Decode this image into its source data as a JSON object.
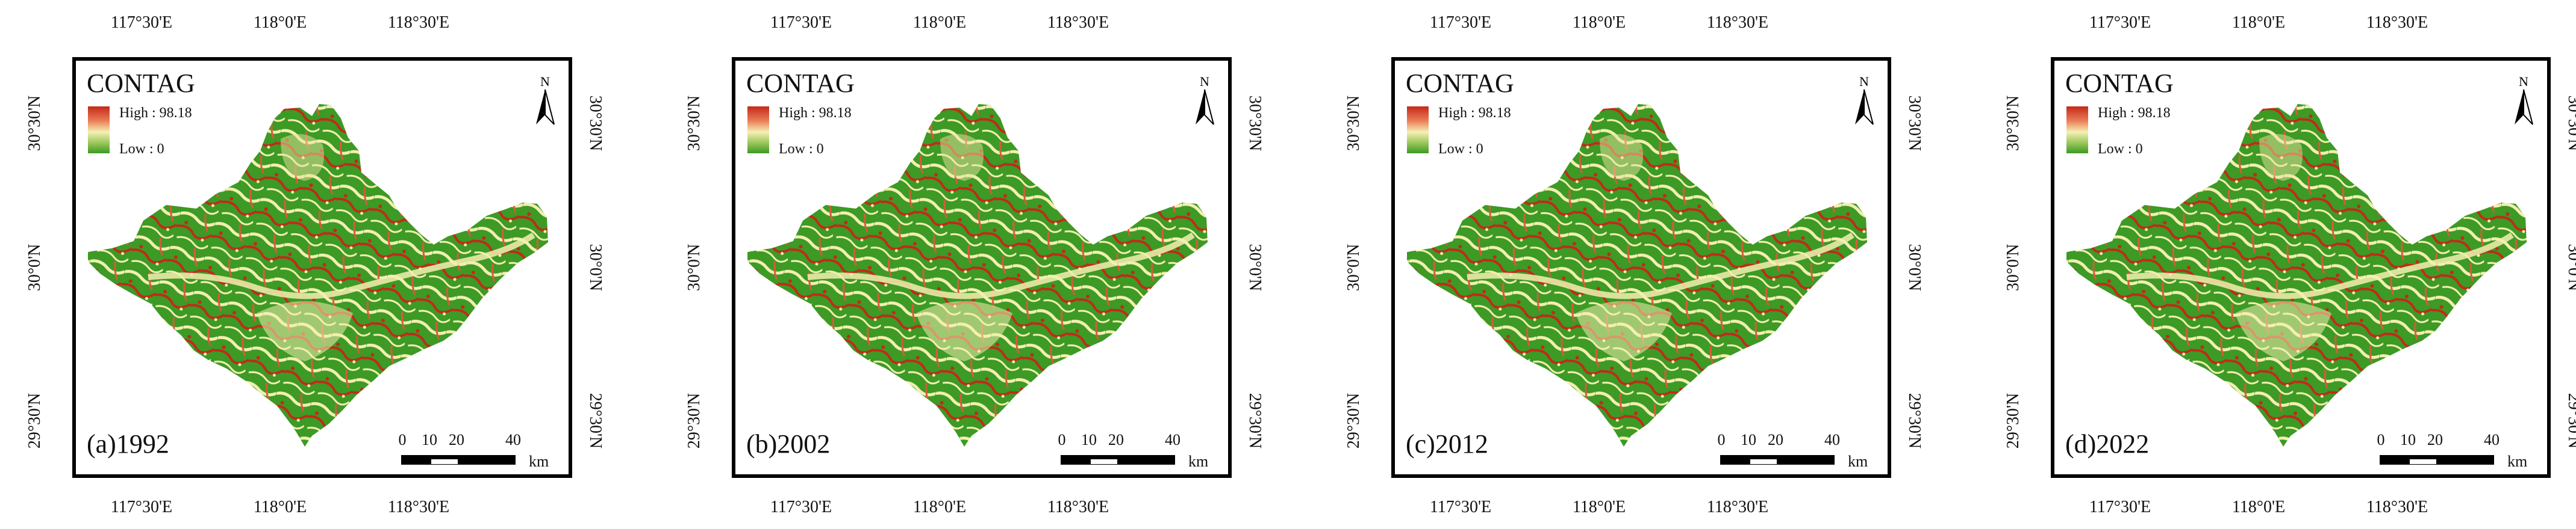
{
  "legend": {
    "title": "CONTAG",
    "high_label": "High : 98.18",
    "low_label": "Low : 0",
    "ramp_colors": [
      "#c62818",
      "#e97b55",
      "#f5f0b4",
      "#9ac65b",
      "#3c9a25"
    ]
  },
  "graticule": {
    "longitude_labels": [
      "117°30'E",
      "118°0'E",
      "118°30'E"
    ],
    "latitude_labels": [
      "30°30'N",
      "30°0'N",
      "29°30'N"
    ]
  },
  "north_arrow": {
    "label": "N",
    "icon": "north-arrow-icon"
  },
  "scale_bar": {
    "ticks": [
      "0",
      "10",
      "20",
      "40"
    ],
    "unit": "km"
  },
  "panels": [
    {
      "label": "(a)1992"
    },
    {
      "label": "(b)2002"
    },
    {
      "label": "(c)2012"
    },
    {
      "label": "(d)2022"
    }
  ],
  "colors": {
    "forest_green": "#3c9a25",
    "light_yellow": "#f3eeb0",
    "dark_red": "#c22a18",
    "background": "#ffffff",
    "frame": "#000000"
  }
}
